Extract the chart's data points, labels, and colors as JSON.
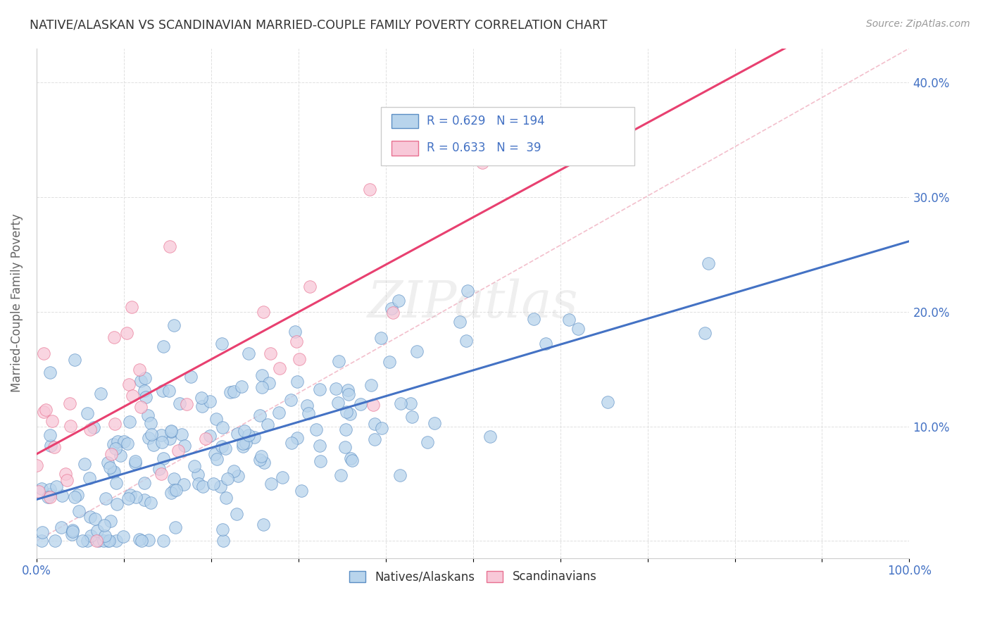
{
  "title": "NATIVE/ALASKAN VS SCANDINAVIAN MARRIED-COUPLE FAMILY POVERTY CORRELATION CHART",
  "source": "Source: ZipAtlas.com",
  "ylabel": "Married-Couple Family Poverty",
  "xlim": [
    0,
    1.0
  ],
  "ylim": [
    -0.015,
    0.43
  ],
  "xticks": [
    0.0,
    0.1,
    0.2,
    0.3,
    0.4,
    0.5,
    0.6,
    0.7,
    0.8,
    0.9,
    1.0
  ],
  "xtick_labels": [
    "0.0%",
    "",
    "",
    "",
    "",
    "",
    "",
    "",
    "",
    "",
    "100.0%"
  ],
  "yticks": [
    0.0,
    0.1,
    0.2,
    0.3,
    0.4
  ],
  "ytick_labels": [
    "",
    "10.0%",
    "20.0%",
    "30.0%",
    "40.0%"
  ],
  "native_color": "#b8d4ec",
  "native_edge_color": "#5b8ec4",
  "native_line_color": "#4472c4",
  "scand_color": "#f8c8d8",
  "scand_edge_color": "#e87090",
  "scand_line_color": "#e84070",
  "legend_blue_r": "0.629",
  "legend_blue_n": "194",
  "legend_pink_r": "0.633",
  "legend_pink_n": "39",
  "watermark_text": "ZIPatlas",
  "background_color": "#ffffff",
  "grid_color": "#e0e0e0",
  "tick_label_color": "#4472c4",
  "ylabel_color": "#666666",
  "title_color": "#333333",
  "source_color": "#999999"
}
